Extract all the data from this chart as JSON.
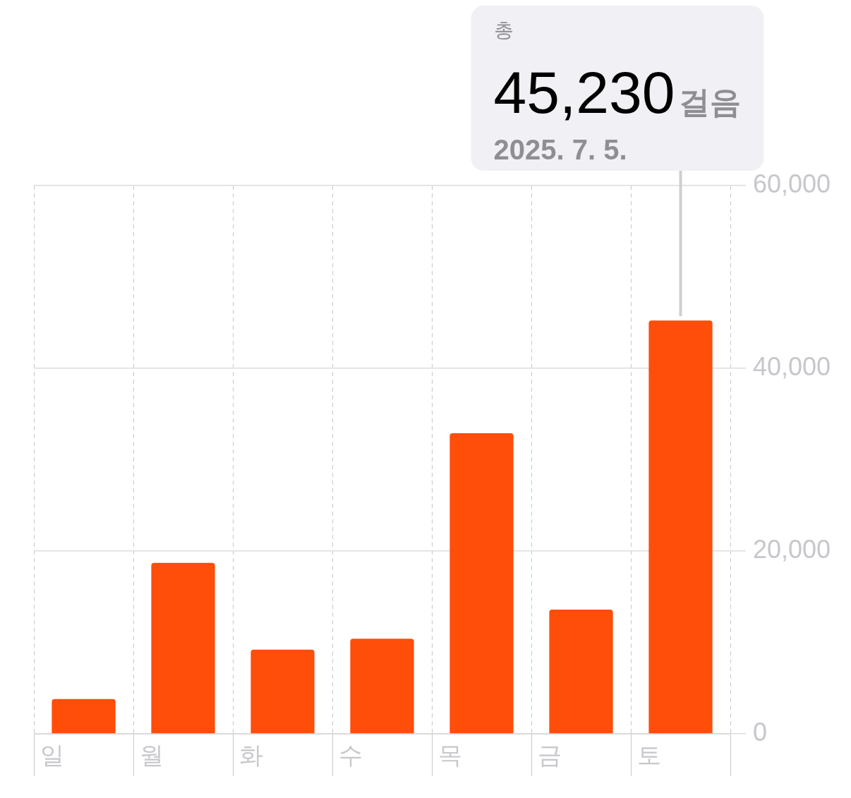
{
  "chart_data": {
    "type": "bar",
    "categories": [
      "일",
      "월",
      "화",
      "수",
      "목",
      "금",
      "토"
    ],
    "values": [
      3800,
      18700,
      9200,
      10400,
      32900,
      13600,
      45230
    ],
    "color": "#ff4d0a",
    "ylim": [
      0,
      60000
    ],
    "yticks": [
      0,
      {
        "value": 20000,
        "label": "20,000"
      },
      {
        "value": 40000,
        "label": "40,000"
      },
      {
        "value": 60000,
        "label": "60,000"
      }
    ],
    "grid": true,
    "annotations": [
      "총",
      "45,230",
      "걸음",
      "2025. 7. 5."
    ]
  }
}
